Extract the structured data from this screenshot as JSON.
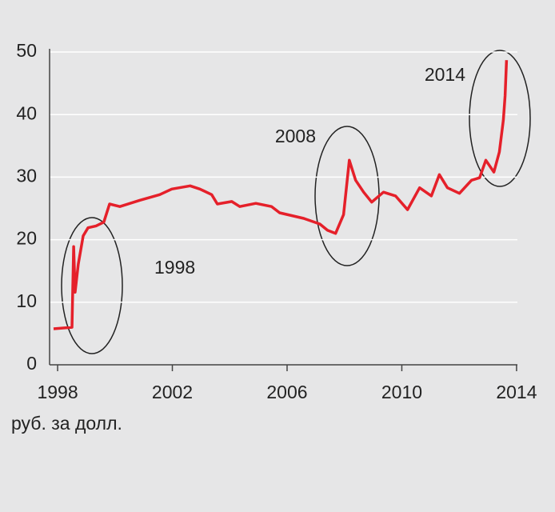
{
  "chart_data": {
    "type": "line",
    "y_label": "руб. за долл.",
    "x": [
      1997.86,
      1998.5,
      1998.56,
      1998.61,
      1998.72,
      1998.89,
      1999.06,
      1999.34,
      1999.61,
      1999.81,
      2000.17,
      2000.87,
      2001.56,
      2001.98,
      2002.62,
      2002.96,
      2003.37,
      2003.57,
      2004.07,
      2004.35,
      2004.91,
      2005.46,
      2005.74,
      2006.58,
      2007.14,
      2007.41,
      2007.69,
      2007.97,
      2008.17,
      2008.39,
      2008.67,
      2008.95,
      2009.36,
      2009.78,
      2010.2,
      2010.62,
      2011.03,
      2011.31,
      2011.59,
      2012.01,
      2012.43,
      2012.71,
      2012.93,
      2013.21,
      2013.4,
      2013.54,
      2013.6,
      2013.65
    ],
    "series": [
      {
        "color": "#e5202a",
        "values": [
          5.75,
          6.0,
          18.9,
          11.6,
          16.1,
          20.6,
          21.9,
          22.2,
          22.8,
          25.7,
          25.3,
          26.3,
          27.2,
          28.1,
          28.6,
          28.1,
          27.2,
          25.7,
          26.1,
          25.3,
          25.8,
          25.3,
          24.3,
          23.4,
          22.5,
          21.5,
          21.0,
          24.0,
          32.7,
          29.5,
          27.6,
          26.0,
          27.6,
          27.0,
          24.8,
          28.3,
          27.0,
          30.4,
          28.3,
          27.4,
          29.5,
          29.9,
          32.7,
          30.8,
          34.0,
          39.1,
          43.0,
          48.7
        ]
      }
    ],
    "xlim": [
      1997.72,
      2014.03
    ],
    "xticks": [
      1998,
      2002,
      2006,
      2010,
      2014
    ],
    "ylim": [
      0,
      50
    ],
    "yticks": [
      0,
      10,
      20,
      30,
      40,
      50
    ],
    "grid": true,
    "annotations": [
      "1998",
      "2008",
      "2014"
    ]
  }
}
